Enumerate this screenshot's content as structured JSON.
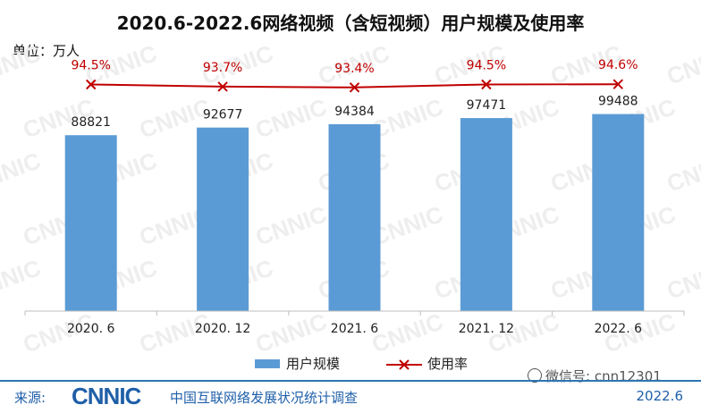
{
  "title": "2020.6-2022.6网络视频（含短视频）用户规模及使用率",
  "unit_label": "单位：万人",
  "watermark": "CNNIC",
  "chart_data": {
    "type": "bar",
    "categories": [
      "2020. 6",
      "2020. 12",
      "2021. 6",
      "2021. 12",
      "2022. 6"
    ],
    "series": [
      {
        "name": "用户规模",
        "type": "bar",
        "values": [
          88821,
          92677,
          94384,
          97471,
          99488
        ],
        "labels": [
          "88821",
          "92677",
          "94384",
          "97471",
          "99488"
        ],
        "color": "#5b9bd5"
      },
      {
        "name": "使用率",
        "type": "line",
        "values": [
          94.5,
          93.7,
          93.4,
          94.5,
          94.6
        ],
        "labels": [
          "94.5%",
          "93.7%",
          "93.4%",
          "94.5%",
          "94.6%"
        ],
        "color": "#c00000"
      }
    ],
    "legend_position": "bottom",
    "grid": false
  },
  "footer": {
    "source_label": "来源:",
    "logo": "CNNIC",
    "organization": "中国互联网络发展状况统计调查",
    "date": "2022.6"
  },
  "wechat_text": "微信号: cnn12301"
}
